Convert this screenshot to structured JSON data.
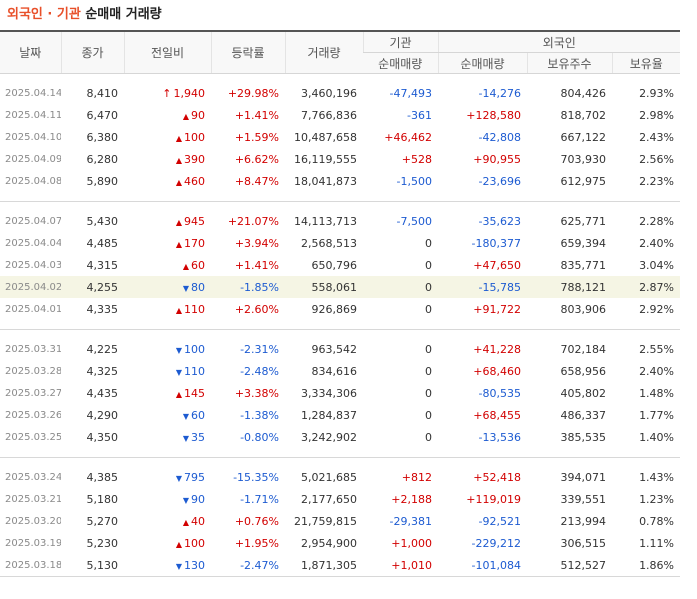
{
  "title": {
    "highlight": "외국인 · 기관",
    "rest": " 순매매 거래량"
  },
  "headers": {
    "date": "날짜",
    "close": "종가",
    "change": "전일비",
    "rate": "등락률",
    "volume": "거래량",
    "inst": "기관",
    "foreign": "외국인",
    "inst_net": "순매매량",
    "foreign_net": "순매매량",
    "foreign_shares": "보유주수",
    "foreign_ratio": "보유율"
  },
  "colors": {
    "up": "#d20000",
    "down": "#1d5bd1",
    "highlight_row": "#f5f5e4",
    "title_accent": "#e8502a"
  },
  "groups": [
    [
      {
        "date": "2025.04.14",
        "close": "8,410",
        "dir": "limit-up",
        "change": "1,940",
        "rate": "+29.98%",
        "volume": "3,460,196",
        "inst": "-47,493",
        "foreign": "-14,276",
        "shares": "804,426",
        "ratio": "2.93%"
      },
      {
        "date": "2025.04.11",
        "close": "6,470",
        "dir": "up",
        "change": "90",
        "rate": "+1.41%",
        "volume": "7,766,836",
        "inst": "-361",
        "foreign": "+128,580",
        "shares": "818,702",
        "ratio": "2.98%"
      },
      {
        "date": "2025.04.10",
        "close": "6,380",
        "dir": "up",
        "change": "100",
        "rate": "+1.59%",
        "volume": "10,487,658",
        "inst": "+46,462",
        "foreign": "-42,808",
        "shares": "667,122",
        "ratio": "2.43%"
      },
      {
        "date": "2025.04.09",
        "close": "6,280",
        "dir": "up",
        "change": "390",
        "rate": "+6.62%",
        "volume": "16,119,555",
        "inst": "+528",
        "foreign": "+90,955",
        "shares": "703,930",
        "ratio": "2.56%"
      },
      {
        "date": "2025.04.08",
        "close": "5,890",
        "dir": "up",
        "change": "460",
        "rate": "+8.47%",
        "volume": "18,041,873",
        "inst": "-1,500",
        "foreign": "-23,696",
        "shares": "612,975",
        "ratio": "2.23%"
      }
    ],
    [
      {
        "date": "2025.04.07",
        "close": "5,430",
        "dir": "up",
        "change": "945",
        "rate": "+21.07%",
        "volume": "14,113,713",
        "inst": "-7,500",
        "foreign": "-35,623",
        "shares": "625,771",
        "ratio": "2.28%"
      },
      {
        "date": "2025.04.04",
        "close": "4,485",
        "dir": "up",
        "change": "170",
        "rate": "+3.94%",
        "volume": "2,568,513",
        "inst": "0",
        "foreign": "-180,377",
        "shares": "659,394",
        "ratio": "2.40%"
      },
      {
        "date": "2025.04.03",
        "close": "4,315",
        "dir": "up",
        "change": "60",
        "rate": "+1.41%",
        "volume": "650,796",
        "inst": "0",
        "foreign": "+47,650",
        "shares": "835,771",
        "ratio": "3.04%"
      },
      {
        "date": "2025.04.02",
        "close": "4,255",
        "dir": "down",
        "change": "80",
        "rate": "-1.85%",
        "volume": "558,061",
        "inst": "0",
        "foreign": "-15,785",
        "shares": "788,121",
        "ratio": "2.87%",
        "highlight": true
      },
      {
        "date": "2025.04.01",
        "close": "4,335",
        "dir": "up",
        "change": "110",
        "rate": "+2.60%",
        "volume": "926,869",
        "inst": "0",
        "foreign": "+91,722",
        "shares": "803,906",
        "ratio": "2.92%"
      }
    ],
    [
      {
        "date": "2025.03.31",
        "close": "4,225",
        "dir": "down",
        "change": "100",
        "rate": "-2.31%",
        "volume": "963,542",
        "inst": "0",
        "foreign": "+41,228",
        "shares": "702,184",
        "ratio": "2.55%"
      },
      {
        "date": "2025.03.28",
        "close": "4,325",
        "dir": "down",
        "change": "110",
        "rate": "-2.48%",
        "volume": "834,616",
        "inst": "0",
        "foreign": "+68,460",
        "shares": "658,956",
        "ratio": "2.40%"
      },
      {
        "date": "2025.03.27",
        "close": "4,435",
        "dir": "up",
        "change": "145",
        "rate": "+3.38%",
        "volume": "3,334,306",
        "inst": "0",
        "foreign": "-80,535",
        "shares": "405,802",
        "ratio": "1.48%"
      },
      {
        "date": "2025.03.26",
        "close": "4,290",
        "dir": "down",
        "change": "60",
        "rate": "-1.38%",
        "volume": "1,284,837",
        "inst": "0",
        "foreign": "+68,455",
        "shares": "486,337",
        "ratio": "1.77%"
      },
      {
        "date": "2025.03.25",
        "close": "4,350",
        "dir": "down",
        "change": "35",
        "rate": "-0.80%",
        "volume": "3,242,902",
        "inst": "0",
        "foreign": "-13,536",
        "shares": "385,535",
        "ratio": "1.40%"
      }
    ],
    [
      {
        "date": "2025.03.24",
        "close": "4,385",
        "dir": "down",
        "change": "795",
        "rate": "-15.35%",
        "volume": "5,021,685",
        "inst": "+812",
        "foreign": "+52,418",
        "shares": "394,071",
        "ratio": "1.43%"
      },
      {
        "date": "2025.03.21",
        "close": "5,180",
        "dir": "down",
        "change": "90",
        "rate": "-1.71%",
        "volume": "2,177,650",
        "inst": "+2,188",
        "foreign": "+119,019",
        "shares": "339,551",
        "ratio": "1.23%"
      },
      {
        "date": "2025.03.20",
        "close": "5,270",
        "dir": "up",
        "change": "40",
        "rate": "+0.76%",
        "volume": "21,759,815",
        "inst": "-29,381",
        "foreign": "-92,521",
        "shares": "213,994",
        "ratio": "0.78%"
      },
      {
        "date": "2025.03.19",
        "close": "5,230",
        "dir": "up",
        "change": "100",
        "rate": "+1.95%",
        "volume": "2,954,900",
        "inst": "+1,000",
        "foreign": "-229,212",
        "shares": "306,515",
        "ratio": "1.11%"
      },
      {
        "date": "2025.03.18",
        "close": "5,130",
        "dir": "down",
        "change": "130",
        "rate": "-2.47%",
        "volume": "1,871,305",
        "inst": "+1,010",
        "foreign": "-101,084",
        "shares": "512,527",
        "ratio": "1.86%"
      }
    ]
  ]
}
